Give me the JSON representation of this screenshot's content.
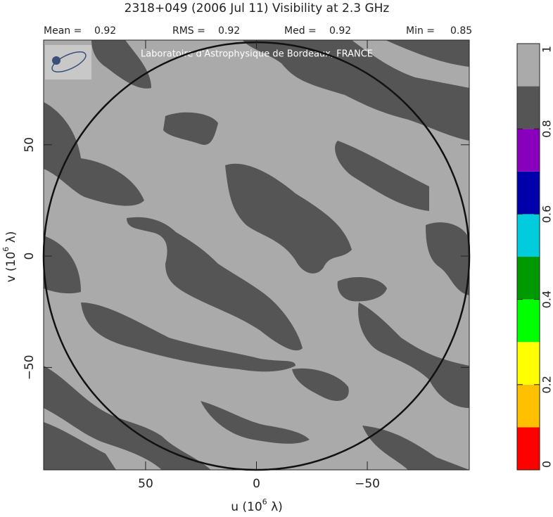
{
  "chart_data": {
    "type": "visibility-map",
    "title": "2318+049  (2006 Jul 11)   Visibility at  2.3 GHz",
    "stats": [
      {
        "label": "Mean =",
        "value": 0.92
      },
      {
        "label": "RMS =",
        "value": 0.92
      },
      {
        "label": "Med =",
        "value": 0.92
      },
      {
        "label": "Min =",
        "value": 0.85
      }
    ],
    "watermark": "Laboratoire d'Astrophysique de Bordeaux, FRANCE",
    "x_label": {
      "text": "u  (10",
      "sup": "6",
      "tail": " λ)"
    },
    "y_label": {
      "text": "v  (10",
      "sup": "6",
      "tail": " λ)"
    },
    "xlim": [
      96,
      -96
    ],
    "ylim": [
      -96,
      97
    ],
    "xticks": [
      50,
      0,
      {
        "value": -50,
        "label": "−50"
      }
    ],
    "yticks": [
      {
        "value": -50,
        "label": "−50"
      },
      0,
      50
    ],
    "uv_radius": 96,
    "background_color": "#aaaaaa",
    "colorbar": {
      "levels": [
        0,
        0.1,
        0.2,
        0.3,
        0.4,
        0.5,
        0.6,
        0.7,
        0.8,
        0.9,
        1
      ],
      "colors": [
        "#ff0000",
        "#ffc000",
        "#ffff00",
        "#00ff00",
        "#009900",
        "#00ccdd",
        "#0000aa",
        "#8800bb",
        "#555555",
        "#aaaaaa"
      ],
      "ticks": [
        0,
        0.2,
        0.4,
        0.6,
        0.8,
        1
      ]
    }
  }
}
